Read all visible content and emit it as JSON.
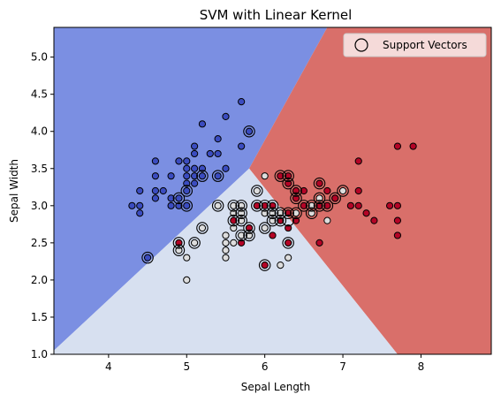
{
  "chart_data": {
    "type": "scatter",
    "title": "SVM with Linear Kernel",
    "xlabel": "Sepal Length",
    "ylabel": "Sepal Width",
    "xlim": [
      3.3,
      8.9
    ],
    "ylim": [
      1.0,
      5.4
    ],
    "xticks": [
      4,
      5,
      6,
      7,
      8
    ],
    "yticks": [
      1.0,
      1.5,
      2.0,
      2.5,
      3.0,
      3.5,
      4.0,
      4.5,
      5.0
    ],
    "legend": {
      "position": "top-right",
      "label": "Support Vectors"
    },
    "regions": {
      "junction": [
        5.8,
        3.5
      ],
      "boundaries": [
        {
          "between": [
            "class_0",
            "class_1"
          ],
          "to": [
            3.3,
            1.05
          ]
        },
        {
          "between": [
            "class_0",
            "class_2"
          ],
          "to": [
            6.8,
            5.4
          ]
        },
        {
          "between": [
            "class_1",
            "class_2"
          ],
          "to": [
            7.7,
            1.0
          ]
        }
      ],
      "colors": {
        "class_0": "#7b8fe2",
        "class_1": "#d7e0f0",
        "class_2": "#d96f6a"
      }
    },
    "series": [
      {
        "class": "class_0",
        "color": "#3b4cc0",
        "points": [
          [
            4.3,
            3.0
          ],
          [
            4.4,
            2.9
          ],
          [
            4.4,
            3.0
          ],
          [
            4.4,
            3.2
          ],
          [
            4.5,
            2.3
          ],
          [
            4.6,
            3.1
          ],
          [
            4.6,
            3.2
          ],
          [
            4.6,
            3.4
          ],
          [
            4.6,
            3.6
          ],
          [
            4.7,
            3.2
          ],
          [
            4.8,
            3.0
          ],
          [
            4.8,
            3.1
          ],
          [
            4.8,
            3.4
          ],
          [
            4.9,
            3.0
          ],
          [
            4.9,
            3.1
          ],
          [
            4.9,
            3.6
          ],
          [
            5.0,
            3.0
          ],
          [
            5.0,
            3.2
          ],
          [
            5.0,
            3.3
          ],
          [
            5.0,
            3.4
          ],
          [
            5.0,
            3.5
          ],
          [
            5.0,
            3.6
          ],
          [
            5.1,
            3.3
          ],
          [
            5.1,
            3.4
          ],
          [
            5.1,
            3.5
          ],
          [
            5.1,
            3.7
          ],
          [
            5.1,
            3.8
          ],
          [
            5.2,
            3.4
          ],
          [
            5.2,
            3.5
          ],
          [
            5.2,
            4.1
          ],
          [
            5.3,
            3.7
          ],
          [
            5.4,
            3.4
          ],
          [
            5.4,
            3.7
          ],
          [
            5.4,
            3.9
          ],
          [
            5.5,
            3.5
          ],
          [
            5.5,
            4.2
          ],
          [
            5.7,
            3.8
          ],
          [
            5.7,
            4.4
          ],
          [
            5.8,
            4.0
          ]
        ]
      },
      {
        "class": "class_1",
        "color": "#dddddd",
        "points": [
          [
            4.9,
            2.4
          ],
          [
            5.0,
            2.0
          ],
          [
            5.0,
            2.3
          ],
          [
            5.1,
            2.5
          ],
          [
            5.2,
            2.7
          ],
          [
            5.4,
            3.0
          ],
          [
            5.5,
            2.3
          ],
          [
            5.5,
            2.4
          ],
          [
            5.5,
            2.5
          ],
          [
            5.5,
            2.6
          ],
          [
            5.6,
            2.5
          ],
          [
            5.6,
            2.7
          ],
          [
            5.6,
            2.9
          ],
          [
            5.6,
            3.0
          ],
          [
            5.7,
            2.6
          ],
          [
            5.7,
            2.8
          ],
          [
            5.7,
            2.9
          ],
          [
            5.7,
            3.0
          ],
          [
            5.8,
            2.6
          ],
          [
            5.8,
            2.7
          ],
          [
            5.9,
            3.0
          ],
          [
            5.9,
            3.2
          ],
          [
            6.0,
            2.2
          ],
          [
            6.0,
            2.7
          ],
          [
            6.0,
            2.9
          ],
          [
            6.0,
            3.4
          ],
          [
            6.1,
            2.8
          ],
          [
            6.1,
            2.9
          ],
          [
            6.1,
            3.0
          ],
          [
            6.2,
            2.2
          ],
          [
            6.2,
            2.9
          ],
          [
            6.3,
            2.3
          ],
          [
            6.3,
            2.5
          ],
          [
            6.4,
            2.9
          ],
          [
            6.4,
            3.2
          ],
          [
            6.6,
            2.9
          ],
          [
            6.6,
            3.0
          ],
          [
            6.7,
            3.0
          ],
          [
            6.7,
            3.1
          ],
          [
            6.8,
            2.8
          ],
          [
            6.9,
            3.1
          ],
          [
            7.0,
            3.2
          ]
        ]
      },
      {
        "class": "class_2",
        "color": "#b40426",
        "points": [
          [
            4.9,
            2.5
          ],
          [
            5.6,
            2.8
          ],
          [
            5.7,
            2.5
          ],
          [
            5.8,
            2.7
          ],
          [
            5.9,
            3.0
          ],
          [
            6.0,
            2.2
          ],
          [
            6.0,
            3.0
          ],
          [
            6.1,
            2.6
          ],
          [
            6.1,
            3.0
          ],
          [
            6.2,
            2.8
          ],
          [
            6.2,
            3.4
          ],
          [
            6.3,
            2.5
          ],
          [
            6.3,
            2.7
          ],
          [
            6.3,
            2.9
          ],
          [
            6.3,
            3.3
          ],
          [
            6.3,
            3.4
          ],
          [
            6.4,
            2.8
          ],
          [
            6.4,
            3.1
          ],
          [
            6.4,
            3.2
          ],
          [
            6.5,
            3.0
          ],
          [
            6.5,
            3.2
          ],
          [
            6.7,
            2.5
          ],
          [
            6.7,
            3.0
          ],
          [
            6.7,
            3.3
          ],
          [
            6.8,
            3.0
          ],
          [
            6.8,
            3.2
          ],
          [
            6.9,
            3.1
          ],
          [
            7.1,
            3.0
          ],
          [
            7.2,
            3.0
          ],
          [
            7.2,
            3.2
          ],
          [
            7.2,
            3.6
          ],
          [
            7.3,
            2.9
          ],
          [
            7.4,
            2.8
          ],
          [
            7.6,
            3.0
          ],
          [
            7.7,
            2.6
          ],
          [
            7.7,
            2.8
          ],
          [
            7.7,
            3.0
          ],
          [
            7.7,
            3.8
          ],
          [
            7.9,
            3.8
          ]
        ]
      }
    ],
    "support_vectors": [
      [
        4.5,
        2.3
      ],
      [
        4.9,
        2.4
      ],
      [
        4.9,
        2.5
      ],
      [
        4.9,
        3.1
      ],
      [
        5.0,
        3.0
      ],
      [
        5.0,
        3.2
      ],
      [
        5.1,
        2.5
      ],
      [
        5.2,
        2.7
      ],
      [
        5.2,
        3.4
      ],
      [
        5.4,
        3.0
      ],
      [
        5.4,
        3.4
      ],
      [
        5.6,
        3.0
      ],
      [
        5.6,
        2.8
      ],
      [
        5.7,
        2.6
      ],
      [
        5.7,
        2.8
      ],
      [
        5.7,
        2.9
      ],
      [
        5.7,
        3.0
      ],
      [
        5.8,
        2.6
      ],
      [
        5.8,
        2.7
      ],
      [
        5.8,
        4.0
      ],
      [
        5.9,
        3.0
      ],
      [
        5.9,
        3.2
      ],
      [
        6.0,
        2.2
      ],
      [
        6.0,
        2.7
      ],
      [
        6.0,
        3.0
      ],
      [
        6.1,
        2.8
      ],
      [
        6.1,
        2.9
      ],
      [
        6.1,
        3.0
      ],
      [
        6.2,
        2.8
      ],
      [
        6.2,
        2.9
      ],
      [
        6.2,
        3.4
      ],
      [
        6.3,
        2.5
      ],
      [
        6.3,
        2.8
      ],
      [
        6.3,
        2.9
      ],
      [
        6.3,
        3.3
      ],
      [
        6.3,
        3.4
      ],
      [
        6.4,
        2.9
      ],
      [
        6.4,
        3.1
      ],
      [
        6.4,
        3.2
      ],
      [
        6.5,
        3.0
      ],
      [
        6.6,
        2.9
      ],
      [
        6.6,
        3.0
      ],
      [
        6.7,
        3.0
      ],
      [
        6.7,
        3.1
      ],
      [
        6.7,
        3.3
      ],
      [
        6.8,
        3.0
      ],
      [
        6.9,
        3.1
      ],
      [
        7.0,
        3.2
      ]
    ]
  }
}
